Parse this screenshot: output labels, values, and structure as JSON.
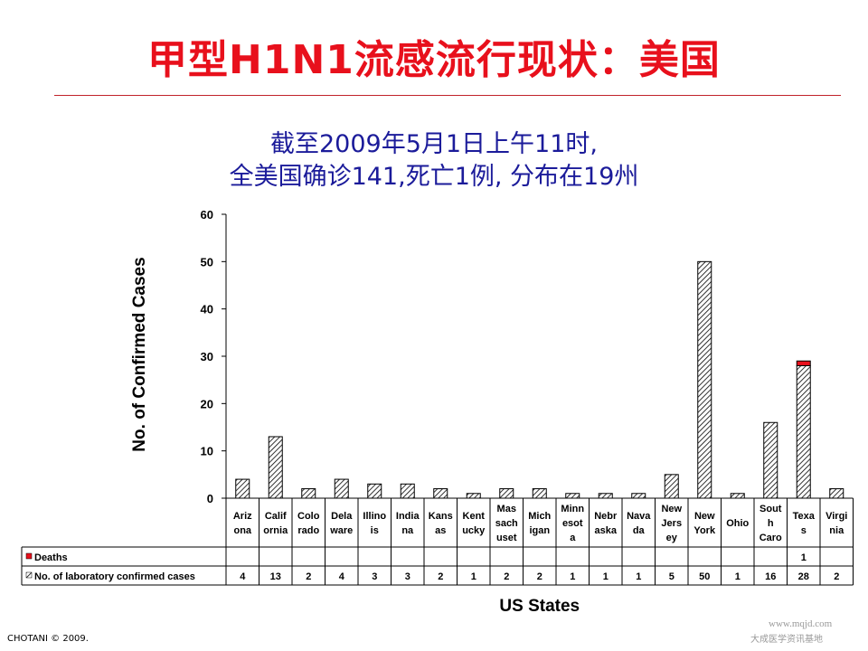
{
  "page": {
    "title": "甲型H1N1流感流行现状：美国",
    "subtitle_line1": "截至2009年5月1日上午11时,",
    "subtitle_line2": "全美国确诊141,死亡1例, 分布在19州",
    "footer": "CHOTANI © 2009.",
    "watermark_url": "www.mqjd.com",
    "watermark_text": "大成医学资讯基地"
  },
  "colors": {
    "title": "#e8101c",
    "subtitle": "#1b1b9a",
    "deaths": "#e8101c",
    "cases_hatch": "#000000"
  },
  "chart_data": {
    "type": "bar",
    "stacked": true,
    "ylabel": "No. of Confirmed Cases",
    "xlabel": "US States",
    "ylim": [
      0,
      60
    ],
    "yticks": [
      0,
      10,
      20,
      30,
      40,
      50,
      60
    ],
    "grid": false,
    "categories": [
      "Arizona",
      "California",
      "Colorado",
      "Delaware",
      "Illinois",
      "Indiana",
      "Kansas",
      "Kentucky",
      "Massachusett",
      "Michigan",
      "Minnesota",
      "Nebraska",
      "Navada",
      "New Jersey",
      "New York",
      "Ohio",
      "South Caro",
      "Texas",
      "Virginia"
    ],
    "category_labels": [
      [
        "Ariz",
        "ona"
      ],
      [
        "Calif",
        "ornia"
      ],
      [
        "Colo",
        "rado"
      ],
      [
        "Dela",
        "ware"
      ],
      [
        "Illino",
        "is"
      ],
      [
        "India",
        "na"
      ],
      [
        "Kans",
        "as"
      ],
      [
        "Kent",
        "ucky"
      ],
      [
        "Mas",
        "sach",
        "uset"
      ],
      [
        "Mich",
        "igan"
      ],
      [
        "Minn",
        "esot",
        "a"
      ],
      [
        "Nebr",
        "aska"
      ],
      [
        "Nava",
        "da"
      ],
      [
        "New",
        "Jers",
        "ey"
      ],
      [
        "New",
        "York"
      ],
      [
        "Ohio"
      ],
      [
        "Sout",
        "h",
        "Caro"
      ],
      [
        "Texa",
        "s"
      ],
      [
        "Virgi",
        "nia"
      ]
    ],
    "series": [
      {
        "name": "Deaths",
        "values": [
          null,
          null,
          null,
          null,
          null,
          null,
          null,
          null,
          null,
          null,
          null,
          null,
          null,
          null,
          null,
          null,
          null,
          1,
          null
        ]
      },
      {
        "name": "No. of laboratory confirmed cases",
        "values": [
          4,
          13,
          2,
          4,
          3,
          3,
          2,
          1,
          2,
          2,
          1,
          1,
          1,
          5,
          50,
          1,
          16,
          28,
          2
        ]
      }
    ]
  }
}
